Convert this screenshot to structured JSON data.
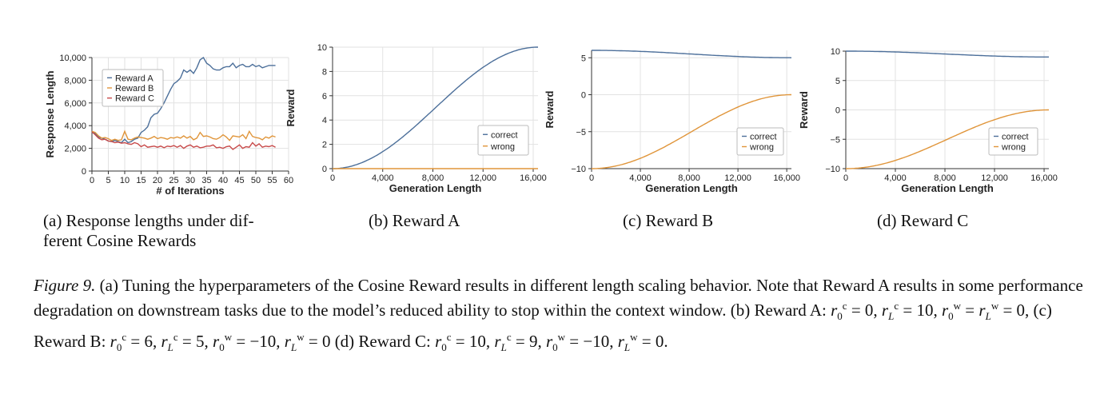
{
  "chart_data": [
    {
      "type": "line",
      "xlabel": "# of Iterations",
      "ylabel": "Response Length",
      "xlim": [
        0,
        60
      ],
      "ylim": [
        0,
        10000
      ],
      "xticks": [
        0,
        5,
        10,
        15,
        20,
        25,
        30,
        35,
        40,
        45,
        50,
        55,
        60
      ],
      "xtick_labels": [
        "0",
        "5",
        "10",
        "15",
        "20",
        "25",
        "30",
        "35",
        "40",
        "45",
        "50",
        "55",
        "60"
      ],
      "yticks": [
        0,
        2000,
        4000,
        6000,
        8000,
        10000
      ],
      "ytick_labels": [
        "0",
        "2,000",
        "4,000",
        "6,000",
        "8,000",
        "10,000"
      ],
      "grid": true,
      "legend": "top-left",
      "series": [
        {
          "name": "Reward A",
          "color": "#4c6f9a",
          "x": [
            0,
            1,
            2,
            3,
            4,
            5,
            6,
            7,
            8,
            9,
            10,
            11,
            12,
            13,
            14,
            15,
            16,
            17,
            18,
            19,
            20,
            21,
            22,
            23,
            24,
            25,
            26,
            27,
            28,
            29,
            30,
            31,
            32,
            33,
            34,
            35,
            36,
            37,
            38,
            39,
            40,
            41,
            42,
            43,
            44,
            45,
            46,
            47,
            48,
            49,
            50,
            51,
            52,
            53,
            54,
            55,
            56
          ],
          "y": [
            3450,
            3300,
            3000,
            2900,
            2800,
            2650,
            2600,
            2700,
            2600,
            2500,
            2800,
            2500,
            2600,
            2800,
            2900,
            3400,
            3600,
            3900,
            4700,
            5000,
            5100,
            5500,
            6000,
            6600,
            7200,
            7700,
            7900,
            8200,
            8900,
            8700,
            8900,
            8600,
            9100,
            9800,
            10000,
            9500,
            9300,
            9000,
            8900,
            8900,
            9100,
            9200,
            9200,
            9500,
            9100,
            9300,
            9400,
            9200,
            9200,
            9400,
            9200,
            9300,
            9100,
            9200,
            9300,
            9300,
            9300
          ]
        },
        {
          "name": "Reward B",
          "color": "#e0953a",
          "x": [
            0,
            1,
            2,
            3,
            4,
            5,
            6,
            7,
            8,
            9,
            10,
            11,
            12,
            13,
            14,
            15,
            16,
            17,
            18,
            19,
            20,
            21,
            22,
            23,
            24,
            25,
            26,
            27,
            28,
            29,
            30,
            31,
            32,
            33,
            34,
            35,
            36,
            37,
            38,
            39,
            40,
            41,
            42,
            43,
            44,
            45,
            46,
            47,
            48,
            49,
            50,
            51,
            52,
            53,
            54,
            55,
            56
          ],
          "y": [
            3500,
            3400,
            3100,
            2900,
            2950,
            2850,
            2700,
            2800,
            2700,
            2750,
            3500,
            2800,
            2750,
            2900,
            3000,
            2950,
            2900,
            2800,
            2900,
            3050,
            2850,
            2950,
            2900,
            2800,
            2950,
            2900,
            3000,
            2900,
            3100,
            2900,
            3050,
            2750,
            2900,
            3400,
            3050,
            3100,
            3000,
            2850,
            2800,
            2950,
            3200,
            3000,
            2700,
            3100,
            3050,
            3000,
            3200,
            2850,
            3500,
            3050,
            2950,
            2900,
            2750,
            3000,
            2900,
            3100,
            3000
          ]
        },
        {
          "name": "Reward C",
          "color": "#c84b4b",
          "x": [
            0,
            1,
            2,
            3,
            4,
            5,
            6,
            7,
            8,
            9,
            10,
            11,
            12,
            13,
            14,
            15,
            16,
            17,
            18,
            19,
            20,
            21,
            22,
            23,
            24,
            25,
            26,
            27,
            28,
            29,
            30,
            31,
            32,
            33,
            34,
            35,
            36,
            37,
            38,
            39,
            40,
            41,
            42,
            43,
            44,
            45,
            46,
            47,
            48,
            49,
            50,
            51,
            52,
            53,
            54,
            55,
            56
          ],
          "y": [
            3450,
            3200,
            2900,
            2750,
            2800,
            2650,
            2600,
            2500,
            2550,
            2450,
            2500,
            2400,
            2350,
            2500,
            2400,
            2150,
            2300,
            2100,
            2150,
            2200,
            2100,
            2200,
            2050,
            2200,
            2150,
            2250,
            2100,
            2250,
            2000,
            2200,
            2300,
            2100,
            2200,
            2050,
            2100,
            2200,
            2200,
            2300,
            2050,
            2100,
            2000,
            2150,
            2200,
            1900,
            2100,
            2300,
            2000,
            2150,
            2100,
            2500,
            2200,
            2400,
            2100,
            2200,
            2150,
            2250,
            2100
          ]
        }
      ]
    },
    {
      "type": "line",
      "xlabel": "Generation Length",
      "ylabel": "Reward",
      "function": "cosine",
      "x_max": 16384,
      "xlim": [
        0,
        16384
      ],
      "ylim": [
        0,
        10
      ],
      "xticks": [
        0,
        4000,
        8000,
        12000,
        16000
      ],
      "xtick_labels": [
        "0",
        "4,000",
        "8,000",
        "12,000",
        "16,000"
      ],
      "yticks": [
        0,
        2,
        4,
        6,
        8,
        10
      ],
      "ytick_labels": [
        "0",
        "2",
        "4",
        "6",
        "8",
        "10"
      ],
      "grid": true,
      "legend": "bottom-right",
      "series": [
        {
          "name": "correct",
          "color": "#4c6f9a",
          "r0": 0,
          "rL": 10
        },
        {
          "name": "wrong",
          "color": "#e0953a",
          "r0": 0,
          "rL": 0
        }
      ]
    },
    {
      "type": "line",
      "xlabel": "Generation Length",
      "ylabel": "Reward",
      "function": "cosine",
      "x_max": 16384,
      "xlim": [
        0,
        16384
      ],
      "ylim": [
        -10,
        6
      ],
      "xticks": [
        0,
        4000,
        8000,
        12000,
        16000
      ],
      "xtick_labels": [
        "0",
        "4,000",
        "8,000",
        "12,000",
        "16,000"
      ],
      "yticks": [
        -10,
        -5,
        0,
        5
      ],
      "ytick_labels": [
        "−10",
        "−5",
        "0",
        "5"
      ],
      "grid": true,
      "legend": "bottom-right",
      "series": [
        {
          "name": "correct",
          "color": "#4c6f9a",
          "r0": 6,
          "rL": 5
        },
        {
          "name": "wrong",
          "color": "#e0953a",
          "r0": -10,
          "rL": 0
        }
      ]
    },
    {
      "type": "line",
      "xlabel": "Generation Length",
      "ylabel": "Reward",
      "function": "cosine",
      "x_max": 16384,
      "xlim": [
        0,
        16384
      ],
      "ylim": [
        -10,
        10
      ],
      "xticks": [
        0,
        4000,
        8000,
        12000,
        16000
      ],
      "xtick_labels": [
        "0",
        "4,000",
        "8,000",
        "12,000",
        "16,000"
      ],
      "yticks": [
        -10,
        -5,
        0,
        5,
        10
      ],
      "ytick_labels": [
        "−10",
        "−5",
        "0",
        "5",
        "10"
      ],
      "grid": true,
      "legend": "bottom-right",
      "series": [
        {
          "name": "correct",
          "color": "#4c6f9a",
          "r0": 10,
          "rL": 9
        },
        {
          "name": "wrong",
          "color": "#e0953a",
          "r0": -10,
          "rL": 0
        }
      ]
    }
  ],
  "subcaptions": {
    "a_line1": "(a) Response lengths under dif-",
    "a_line2": "ferent Cosine Rewards",
    "b": "(b) Reward A",
    "c": "(c) Reward B",
    "d": "(d) Reward C"
  },
  "caption": {
    "lead": "Figure 9.",
    "t1": "(a) Tuning the hyperparameters of the Cosine Reward results in different length scaling behavior. Note that Reward A results in some performance degradation on downstream tasks due to the model’s reduced ability to stop within the context window. (b) Reward A:",
    "t2": "(c) Reward B:",
    "t3": "(d) Reward C:",
    "r": "r",
    "sub0": "0",
    "subL": "L",
    "c": "c",
    "w": "w",
    "eq": " = ",
    "sep": ", ",
    "a_rc0": "0",
    "a_rcL": "10",
    "a_rw": "0",
    "b_rc0": "6",
    "b_rcL": "5",
    "b_rw0": "−10",
    "b_rwL": "0",
    "c_rc0": "10",
    "c_rcL": "9",
    "c_rw0": "−10",
    "c_rwL": "0."
  }
}
